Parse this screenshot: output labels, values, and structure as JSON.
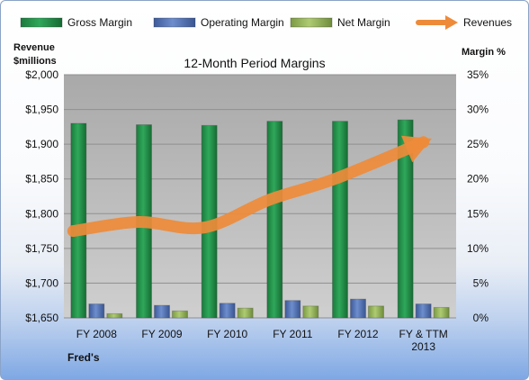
{
  "chart_data": {
    "type": "bar",
    "title": "12-Month Period Margins",
    "categories": [
      "FY 2008",
      "FY 2009",
      "FY 2010",
      "FY 2011",
      "FY 2012",
      "FY & TTM 2013"
    ],
    "series": [
      {
        "name": "Gross Margin",
        "axis": "right",
        "values": [
          28.0,
          27.8,
          27.7,
          28.3,
          28.3,
          28.5
        ],
        "color": "#1f8a45"
      },
      {
        "name": "Operating Margin",
        "axis": "right",
        "values": [
          2.0,
          1.8,
          2.1,
          2.5,
          2.7,
          2.0
        ],
        "color": "#4f6fb0"
      },
      {
        "name": "Net Margin",
        "axis": "right",
        "values": [
          0.6,
          1.0,
          1.4,
          1.7,
          1.7,
          1.5
        ],
        "color": "#93b35a"
      },
      {
        "name": "Revenues",
        "axis": "left",
        "type": "line",
        "values": [
          1775,
          1788,
          1780,
          1820,
          1850,
          1903
        ],
        "color": "#ee8b3a"
      }
    ],
    "y_left": {
      "label": "Revenue $millions",
      "min": 1650,
      "max": 2000,
      "ticks": [
        1650,
        1700,
        1750,
        1800,
        1850,
        1900,
        1950,
        2000
      ],
      "format": "$"
    },
    "y_right": {
      "label": "Margin %",
      "min": 0,
      "max": 35,
      "ticks": [
        0,
        5,
        10,
        15,
        20,
        25,
        30,
        35
      ],
      "format": "%"
    },
    "legend_position": "top",
    "company": "Fred's",
    "grid": true
  }
}
